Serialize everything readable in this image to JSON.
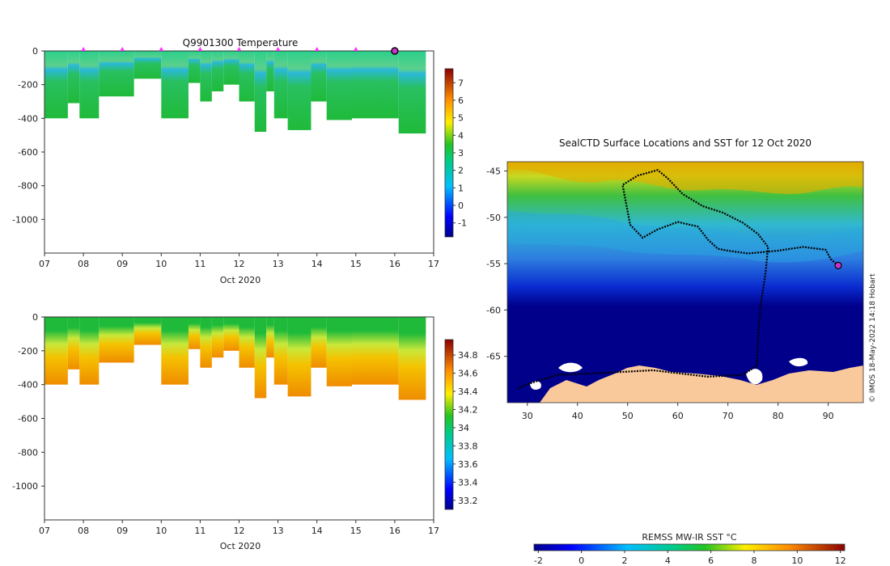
{
  "chart_data": [
    {
      "id": "temperature",
      "type": "heatmap",
      "title": "Q9901300  Temperature",
      "xlabel": "Oct 2020",
      "ylabel": "",
      "xlim": [
        7,
        17
      ],
      "ylim": [
        -1200,
        0
      ],
      "x_ticks": [
        "07",
        "08",
        "09",
        "10",
        "11",
        "12",
        "13",
        "14",
        "15",
        "16",
        "17"
      ],
      "y_ticks": [
        "0",
        "-200",
        "-400",
        "-600",
        "-800",
        "-1000"
      ],
      "y_tick_values": [
        0,
        -200,
        -400,
        -600,
        -800,
        -1000
      ],
      "colorbar": {
        "ticks": [
          "-1",
          "0",
          "1",
          "2",
          "3",
          "4",
          "5",
          "6",
          "7"
        ],
        "range": [
          -1.8,
          7.8
        ]
      },
      "surface_markers_day": [
        8,
        9,
        10,
        11,
        12,
        13,
        14,
        15
      ],
      "latest_marker_day": 16,
      "profiles": [
        {
          "t0": 7.0,
          "t1": 7.6,
          "max_depth": 400
        },
        {
          "t0": 7.6,
          "t1": 7.9,
          "max_depth": 310
        },
        {
          "t0": 7.9,
          "t1": 8.4,
          "max_depth": 400
        },
        {
          "t0": 8.4,
          "t1": 9.3,
          "max_depth": 270
        },
        {
          "t0": 9.3,
          "t1": 10.0,
          "max_depth": 165
        },
        {
          "t0": 10.0,
          "t1": 10.7,
          "max_depth": 400
        },
        {
          "t0": 10.7,
          "t1": 11.0,
          "max_depth": 190
        },
        {
          "t0": 11.0,
          "t1": 11.3,
          "max_depth": 300
        },
        {
          "t0": 11.3,
          "t1": 11.6,
          "max_depth": 240
        },
        {
          "t0": 11.6,
          "t1": 12.0,
          "max_depth": 200
        },
        {
          "t0": 12.0,
          "t1": 12.4,
          "max_depth": 300
        },
        {
          "t0": 12.4,
          "t1": 12.7,
          "max_depth": 480
        },
        {
          "t0": 12.7,
          "t1": 12.9,
          "max_depth": 240
        },
        {
          "t0": 12.9,
          "t1": 13.25,
          "max_depth": 400
        },
        {
          "t0": 13.25,
          "t1": 13.85,
          "max_depth": 470
        },
        {
          "t0": 13.85,
          "t1": 14.25,
          "max_depth": 300
        },
        {
          "t0": 14.25,
          "t1": 14.9,
          "max_depth": 410
        },
        {
          "t0": 14.9,
          "t1": 16.1,
          "max_depth": 400
        },
        {
          "t0": 16.1,
          "t1": 16.8,
          "max_depth": 490
        }
      ]
    },
    {
      "id": "salinity",
      "type": "heatmap",
      "title": "",
      "xlabel": "Oct 2020",
      "ylabel": "",
      "xlim": [
        7,
        17
      ],
      "ylim": [
        -1200,
        0
      ],
      "x_ticks": [
        "07",
        "08",
        "09",
        "10",
        "11",
        "12",
        "13",
        "14",
        "15",
        "16",
        "17"
      ],
      "y_ticks": [
        "0",
        "-200",
        "-400",
        "-600",
        "-800",
        "-1000"
      ],
      "y_tick_values": [
        0,
        -200,
        -400,
        -600,
        -800,
        -1000
      ],
      "colorbar": {
        "ticks": [
          "33.2",
          "33.4",
          "33.6",
          "33.8",
          "34",
          "34.2",
          "34.4",
          "34.6",
          "34.8"
        ],
        "range": [
          33.1,
          34.97
        ]
      },
      "profiles": "same as temperature panel"
    },
    {
      "id": "sst_map",
      "type": "heatmap",
      "title": "SealCTD Surface Locations and SST for 12 Oct 2020",
      "xlim": [
        26,
        97
      ],
      "ylim": [
        -70,
        -44
      ],
      "x_ticks": [
        "30",
        "40",
        "50",
        "60",
        "70",
        "80",
        "90"
      ],
      "x_tick_values": [
        30,
        40,
        50,
        60,
        70,
        80,
        90
      ],
      "y_ticks": [
        "-45",
        "-50",
        "-55",
        "-60",
        "-65"
      ],
      "y_tick_values": [
        -45,
        -50,
        -55,
        -60,
        -65
      ],
      "colorbar": {
        "label": "REMSS MW-IR SST °C",
        "ticks": [
          "-2",
          "0",
          "2",
          "4",
          "6",
          "8",
          "10",
          "12"
        ],
        "range": [
          -2.2,
          12.2
        ]
      },
      "track_lonlat": [
        [
          92,
          -55.2
        ],
        [
          90.5,
          -54.5
        ],
        [
          89.5,
          -53.5
        ],
        [
          85,
          -53.2
        ],
        [
          80,
          -53.6
        ],
        [
          74,
          -53.9
        ],
        [
          70,
          -53.6
        ],
        [
          68,
          -53.4
        ],
        [
          66,
          -52.4
        ],
        [
          64,
          -51
        ],
        [
          60,
          -50.5
        ],
        [
          56,
          -51.3
        ],
        [
          53,
          -52.2
        ],
        [
          50.5,
          -50.8
        ],
        [
          49,
          -46.5
        ],
        [
          52,
          -45.5
        ],
        [
          56,
          -44.9
        ],
        [
          58,
          -45.8
        ],
        [
          61,
          -47.5
        ],
        [
          65,
          -48.8
        ],
        [
          69,
          -49.5
        ],
        [
          73,
          -50.6
        ],
        [
          76,
          -51.8
        ],
        [
          78,
          -53.2
        ],
        [
          77.5,
          -56
        ],
        [
          76.5,
          -59.5
        ],
        [
          76,
          -63
        ],
        [
          75.8,
          -66
        ],
        [
          73,
          -67
        ],
        [
          66,
          -67.2
        ],
        [
          55,
          -66.5
        ],
        [
          45,
          -66.8
        ],
        [
          36,
          -67
        ],
        [
          30,
          -68
        ],
        [
          28,
          -68.5
        ]
      ],
      "latest_position": [
        92,
        -55.2
      ]
    }
  ],
  "credit_text": "© IMOS 18-May-2022 14:18 Hobart",
  "colors": {
    "land": "#f9c99b",
    "ice": "#ffffff",
    "track": "#000000",
    "latest_marker": "#cc33cc",
    "surface_marker": "#ff33ff"
  }
}
